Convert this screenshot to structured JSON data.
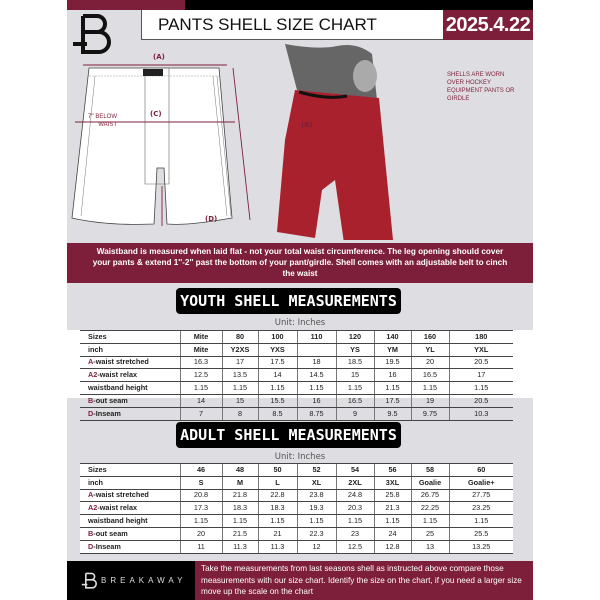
{
  "header": {
    "title": "PANTS SHELL SIZE CHART",
    "date": "2025.4.22"
  },
  "diagram": {
    "label_a": "(A)",
    "label_b": "(B)",
    "label_c": "(C)",
    "label_d": "(D)",
    "note_c": "7'' BELOW WAIST",
    "side_note": "SHELLS ARE WORN OVER HOCKEY EQUIPMENT PANTS OR GIRDLE"
  },
  "banner": "Waistband is measured when laid flat - not your total waist circumference. The leg opening should cover your pants & extend 1''-2'' past the bottom of your pant/girdle. Shell comes with an adjustable belt to cinch the waist",
  "youth": {
    "title": "YOUTH SHELL MEASUREMENTS",
    "unit": "Unit: Inches",
    "rows": [
      {
        "prefix": "",
        "label": "Sizes",
        "values": [
          "Mite",
          "80",
          "100",
          "110",
          "120",
          "140",
          "160",
          "180"
        ]
      },
      {
        "prefix": "",
        "label": "inch",
        "values": [
          "Mite",
          "Y2XS",
          "YXS",
          "",
          "YS",
          "YM",
          "YL",
          "YXL"
        ]
      },
      {
        "prefix": "A",
        "label": "-waist stretched",
        "values": [
          "16.3",
          "17",
          "17.5",
          "18",
          "18.5",
          "19.5",
          "20",
          "20.5"
        ]
      },
      {
        "prefix": "A2",
        "label": "-waist relax",
        "values": [
          "12.5",
          "13.5",
          "14",
          "14.5",
          "15",
          "16",
          "16.5",
          "17"
        ]
      },
      {
        "prefix": "",
        "label": "waistband height",
        "values": [
          "1.15",
          "1.15",
          "1.15",
          "1.15",
          "1.15",
          "1.15",
          "1.15",
          "1.15"
        ]
      },
      {
        "prefix": "B",
        "label": "-out seam",
        "values": [
          "14",
          "15",
          "15.5",
          "16",
          "16.5",
          "17.5",
          "19",
          "20.5"
        ]
      },
      {
        "prefix": "D",
        "label": "-Inseam",
        "values": [
          "7",
          "8",
          "8.5",
          "8.75",
          "9",
          "9.5",
          "9.75",
          "10.3"
        ]
      }
    ]
  },
  "adult": {
    "title": "ADULT SHELL MEASUREMENTS",
    "unit": "Unit: Inches",
    "rows": [
      {
        "prefix": "",
        "label": "Sizes",
        "values": [
          "46",
          "48",
          "50",
          "52",
          "54",
          "56",
          "58",
          "60"
        ]
      },
      {
        "prefix": "",
        "label": "inch",
        "values": [
          "S",
          "M",
          "L",
          "XL",
          "2XL",
          "3XL",
          "Goalie",
          "Goalie+"
        ]
      },
      {
        "prefix": "A",
        "label": "-waist stretched",
        "values": [
          "20.8",
          "21.8",
          "22.8",
          "23.8",
          "24.8",
          "25.8",
          "26.75",
          "27.75"
        ]
      },
      {
        "prefix": "A2",
        "label": "-waist relax",
        "values": [
          "17.3",
          "18.3",
          "18.3",
          "19.3",
          "20.3",
          "21.3",
          "22.25",
          "23.25"
        ]
      },
      {
        "prefix": "",
        "label": "waistband height",
        "values": [
          "1.15",
          "1.15",
          "1.15",
          "1.15",
          "1.15",
          "1.15",
          "1.15",
          "1.15"
        ]
      },
      {
        "prefix": "B",
        "label": "-out seam",
        "values": [
          "20",
          "21.5",
          "21",
          "22.3",
          "23",
          "24",
          "25",
          "25.5"
        ]
      },
      {
        "prefix": "D",
        "label": "-Inseam",
        "values": [
          "11",
          "11.3",
          "11.3",
          "12",
          "12.5",
          "12.8",
          "13",
          "13.25"
        ]
      }
    ]
  },
  "footer": {
    "brand": "BREAKAWAY",
    "text": "Take the measurements from last seasons shell as instructed above compare those measurements  with our size chart. Identify the size on the chart, if you need a larger size move up the scale on the chart"
  },
  "colors": {
    "accent": "#7d1f3a",
    "background": "#dedee2"
  }
}
